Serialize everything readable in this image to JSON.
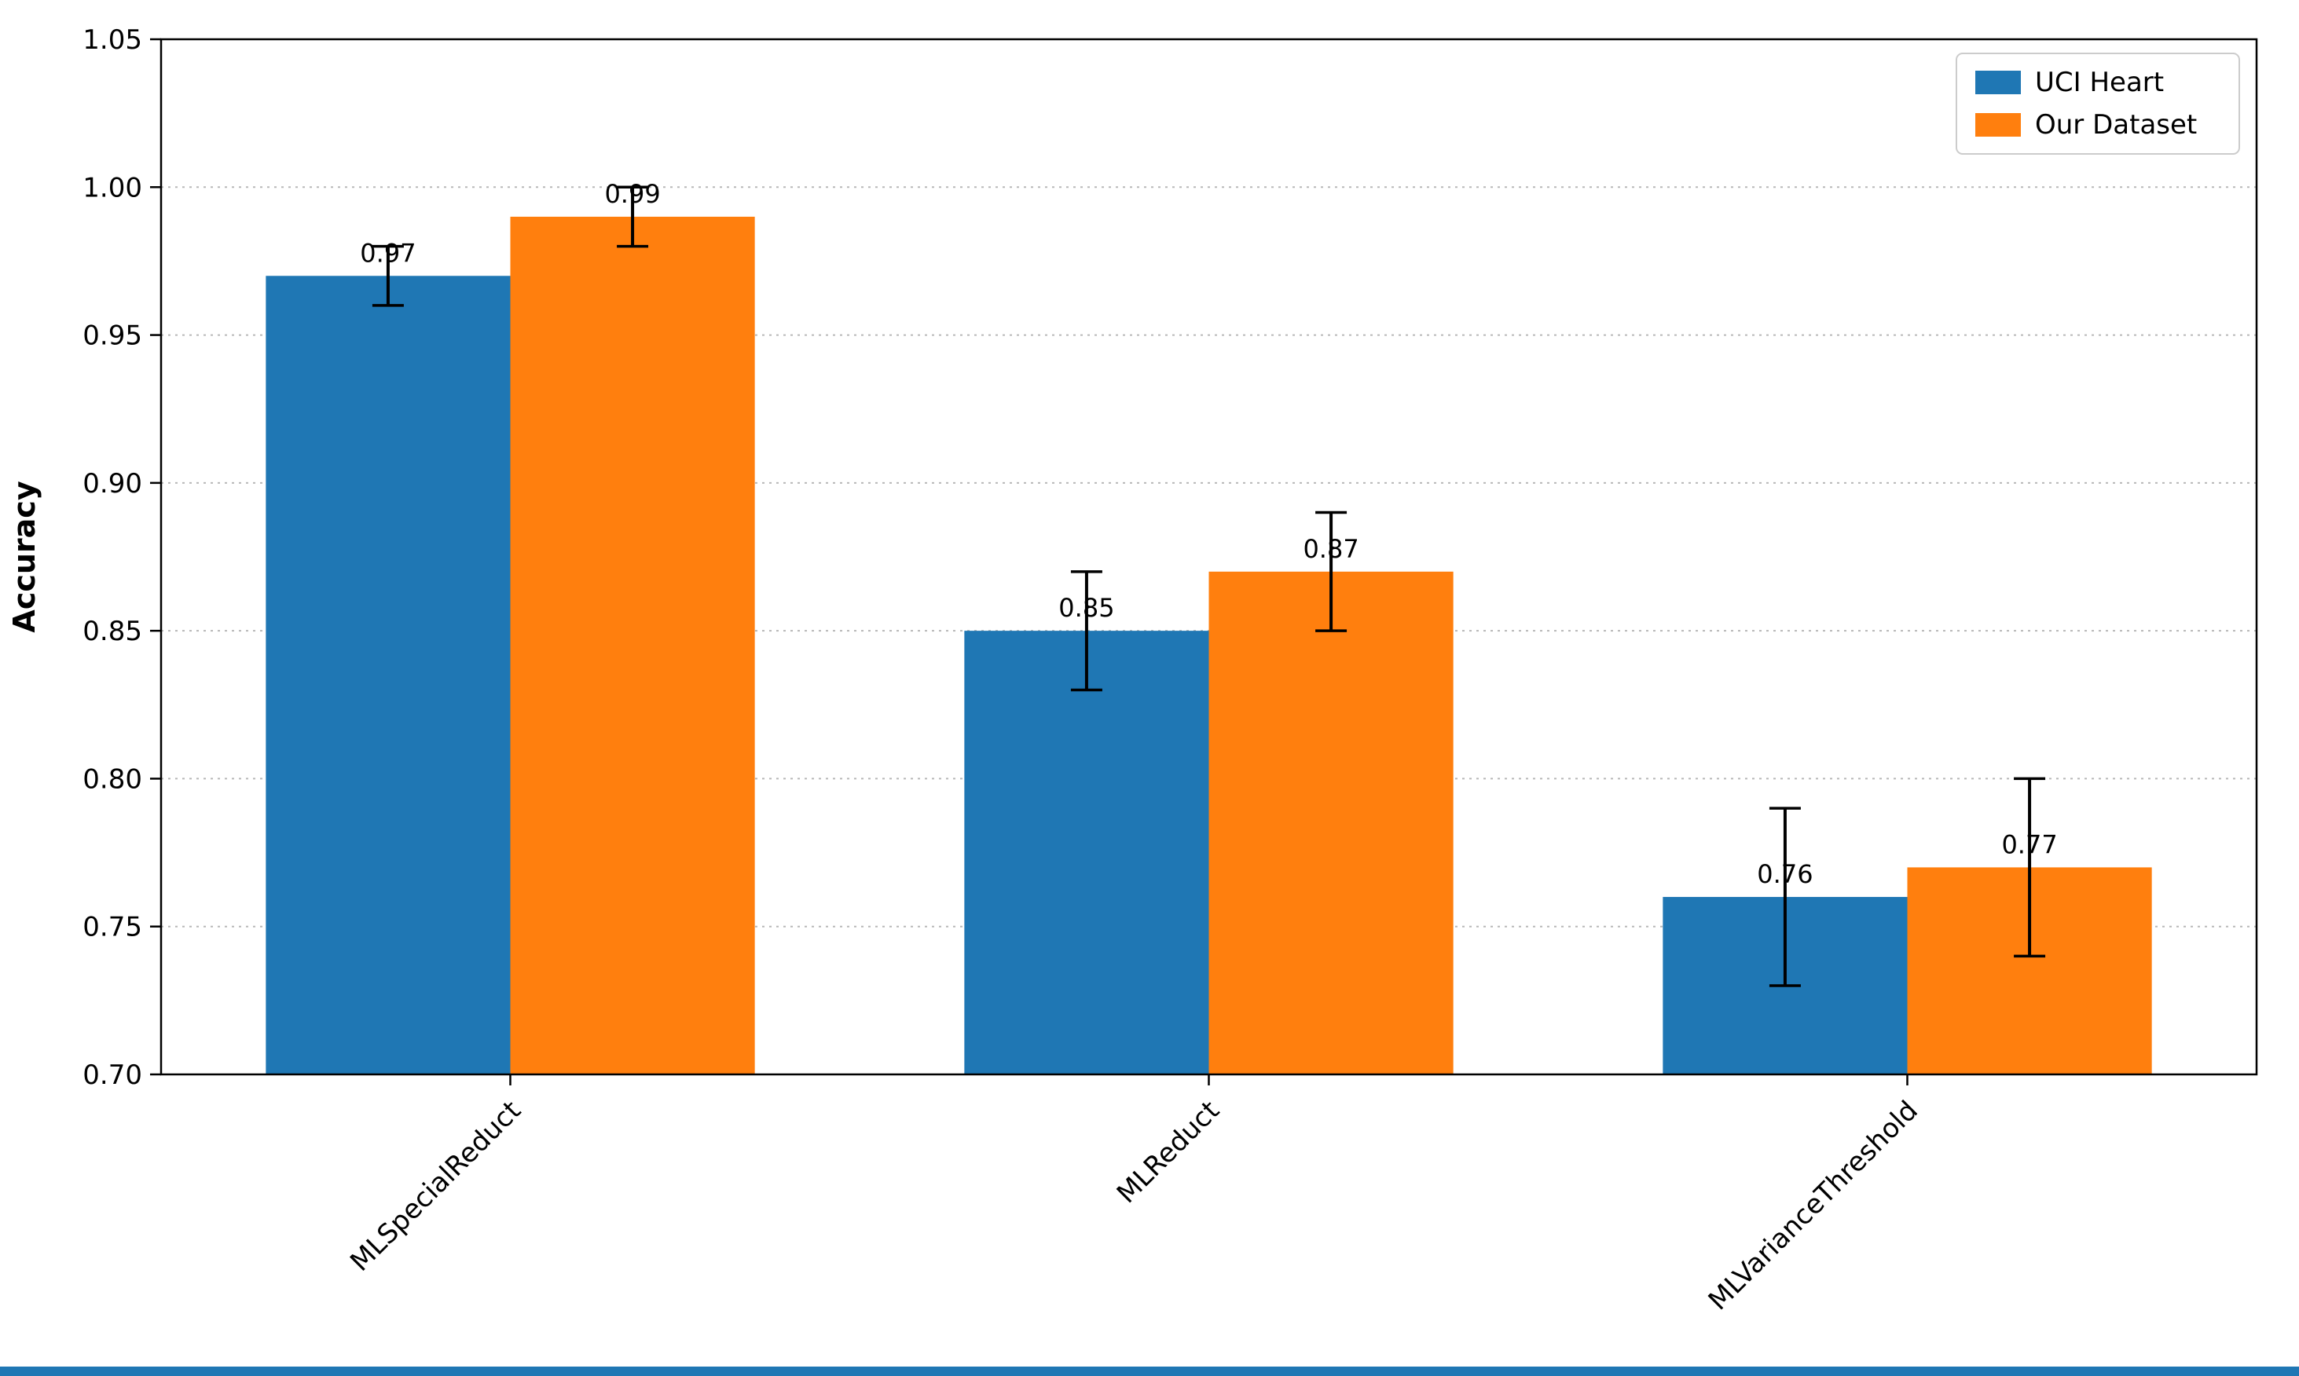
{
  "figure": {
    "background": "#ffffff",
    "bottom_strip_color": "#1f77b4"
  },
  "chart_data": {
    "type": "bar",
    "title": "",
    "xlabel": "",
    "ylabel": "Accuracy",
    "categories": [
      "MLSpecialReduct",
      "MLReduct",
      "MLVarianceThreshold"
    ],
    "series": [
      {
        "name": "UCI Heart",
        "color": "#1f77b4",
        "values": [
          0.97,
          0.85,
          0.76
        ],
        "errors": [
          0.01,
          0.02,
          0.03
        ],
        "labels": [
          "0.97",
          "0.85",
          "0.76"
        ]
      },
      {
        "name": "Our Dataset",
        "color": "#ff7f0e",
        "values": [
          0.99,
          0.87,
          0.77
        ],
        "errors": [
          0.01,
          0.02,
          0.03
        ],
        "labels": [
          "0.99",
          "0.87",
          "0.77"
        ]
      }
    ],
    "ylim": [
      0.7,
      1.05
    ],
    "yticks": [
      "0.70",
      "0.75",
      "0.80",
      "0.85",
      "0.90",
      "0.95",
      "1.00",
      "1.05"
    ],
    "grid": "horizontal-dotted",
    "grid_color": "#b8b8b8",
    "axis_color": "#000000",
    "error_bar_color": "#000000",
    "text_color": "#000000",
    "x_tick_rotation": 45,
    "legend": {
      "position": "upper right",
      "border_color": "#cccccc",
      "background": "#ffffff",
      "entries": [
        "UCI Heart",
        "Our Dataset"
      ]
    }
  }
}
